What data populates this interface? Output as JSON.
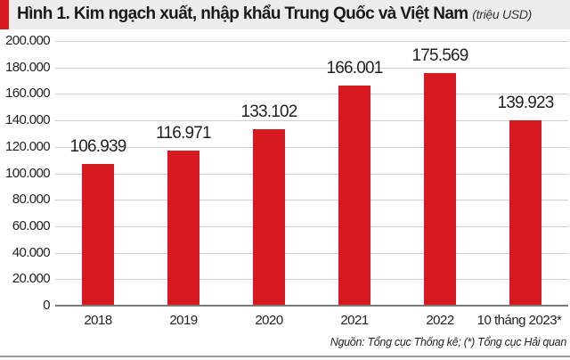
{
  "header": {
    "title": "Hình 1. Kim ngạch xuất, nhập khẩu Trung Quốc và Việt Nam",
    "unit": "(triệu USD)",
    "accent_color": "#d71920"
  },
  "source": "Nguồn: Tổng cục Thống kê; (*) Tổng cục Hải quan",
  "y_ticks": [
    "200.000",
    "180.000",
    "160.000",
    "140.000",
    "120.000",
    "100.000",
    "80.000",
    "60.000",
    "40.000",
    "20.000",
    "0"
  ],
  "bars": [
    {
      "category": "2018",
      "label": "106.939"
    },
    {
      "category": "2019",
      "label": "116.971"
    },
    {
      "category": "2020",
      "label": "133.102"
    },
    {
      "category": "2021",
      "label": "166.001"
    },
    {
      "category": "2022",
      "label": "175.569"
    },
    {
      "category": "10 tháng 2023*",
      "label": "139.923"
    }
  ],
  "chart_data": {
    "type": "bar",
    "title": "Hình 1. Kim ngạch xuất, nhập khẩu Trung Quốc và Việt Nam (triệu USD)",
    "categories": [
      "2018",
      "2019",
      "2020",
      "2021",
      "2022",
      "10 tháng 2023*"
    ],
    "values": [
      106939,
      116971,
      133102,
      166001,
      175569,
      139923
    ],
    "value_labels": [
      "106.939",
      "116.971",
      "133.102",
      "166.001",
      "175.569",
      "139.923"
    ],
    "xlabel": "",
    "ylabel": "triệu USD",
    "ylim": [
      0,
      200000
    ],
    "yticks": [
      0,
      20000,
      40000,
      60000,
      80000,
      100000,
      120000,
      140000,
      160000,
      180000,
      200000
    ],
    "grid": true,
    "legend": null,
    "bar_color": "#d71920",
    "annotation": "Nguồn: Tổng cục Thống kê; (*) Tổng cục Hải quan"
  }
}
